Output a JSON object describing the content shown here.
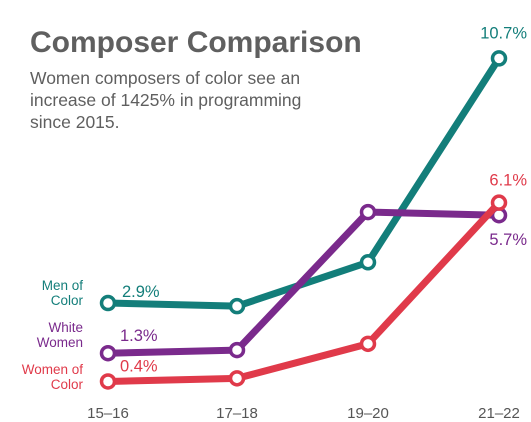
{
  "title": "Composer Comparison",
  "subtitle_lines": [
    "Women composers of color see an",
    "increase of 1425% in programming",
    "since 2015."
  ],
  "colors": {
    "title": "#5f5f5f",
    "subtitle": "#5f5f5f",
    "axis": "#555555",
    "men_of_color": "#137e7a",
    "white_women": "#7a2a8c",
    "women_of_color": "#e03a4a"
  },
  "chart_data": {
    "type": "line",
    "categories": [
      "15–16",
      "17–18",
      "19–20",
      "21–22"
    ],
    "ylim": [
      0,
      11
    ],
    "grid": false,
    "legend": "left of lines",
    "series": [
      {
        "name": "Men of Color",
        "name_lines": [
          "Men of",
          "Color"
        ],
        "color_key": "men_of_color",
        "values": [
          2.9,
          2.8,
          4.2,
          10.7
        ],
        "labels": [
          "2.9%",
          "",
          "",
          "10.7%"
        ]
      },
      {
        "name": "White Women",
        "name_lines": [
          "White",
          "Women"
        ],
        "color_key": "white_women",
        "values": [
          1.3,
          1.4,
          5.8,
          5.7
        ],
        "labels": [
          "1.3%",
          "",
          "",
          "5.7%"
        ]
      },
      {
        "name": "Women of Color",
        "name_lines": [
          "Women of",
          "Color"
        ],
        "color_key": "women_of_color",
        "values": [
          0.4,
          0.5,
          1.6,
          6.1
        ],
        "labels": [
          "0.4%",
          "",
          "",
          "6.1%"
        ]
      }
    ]
  }
}
